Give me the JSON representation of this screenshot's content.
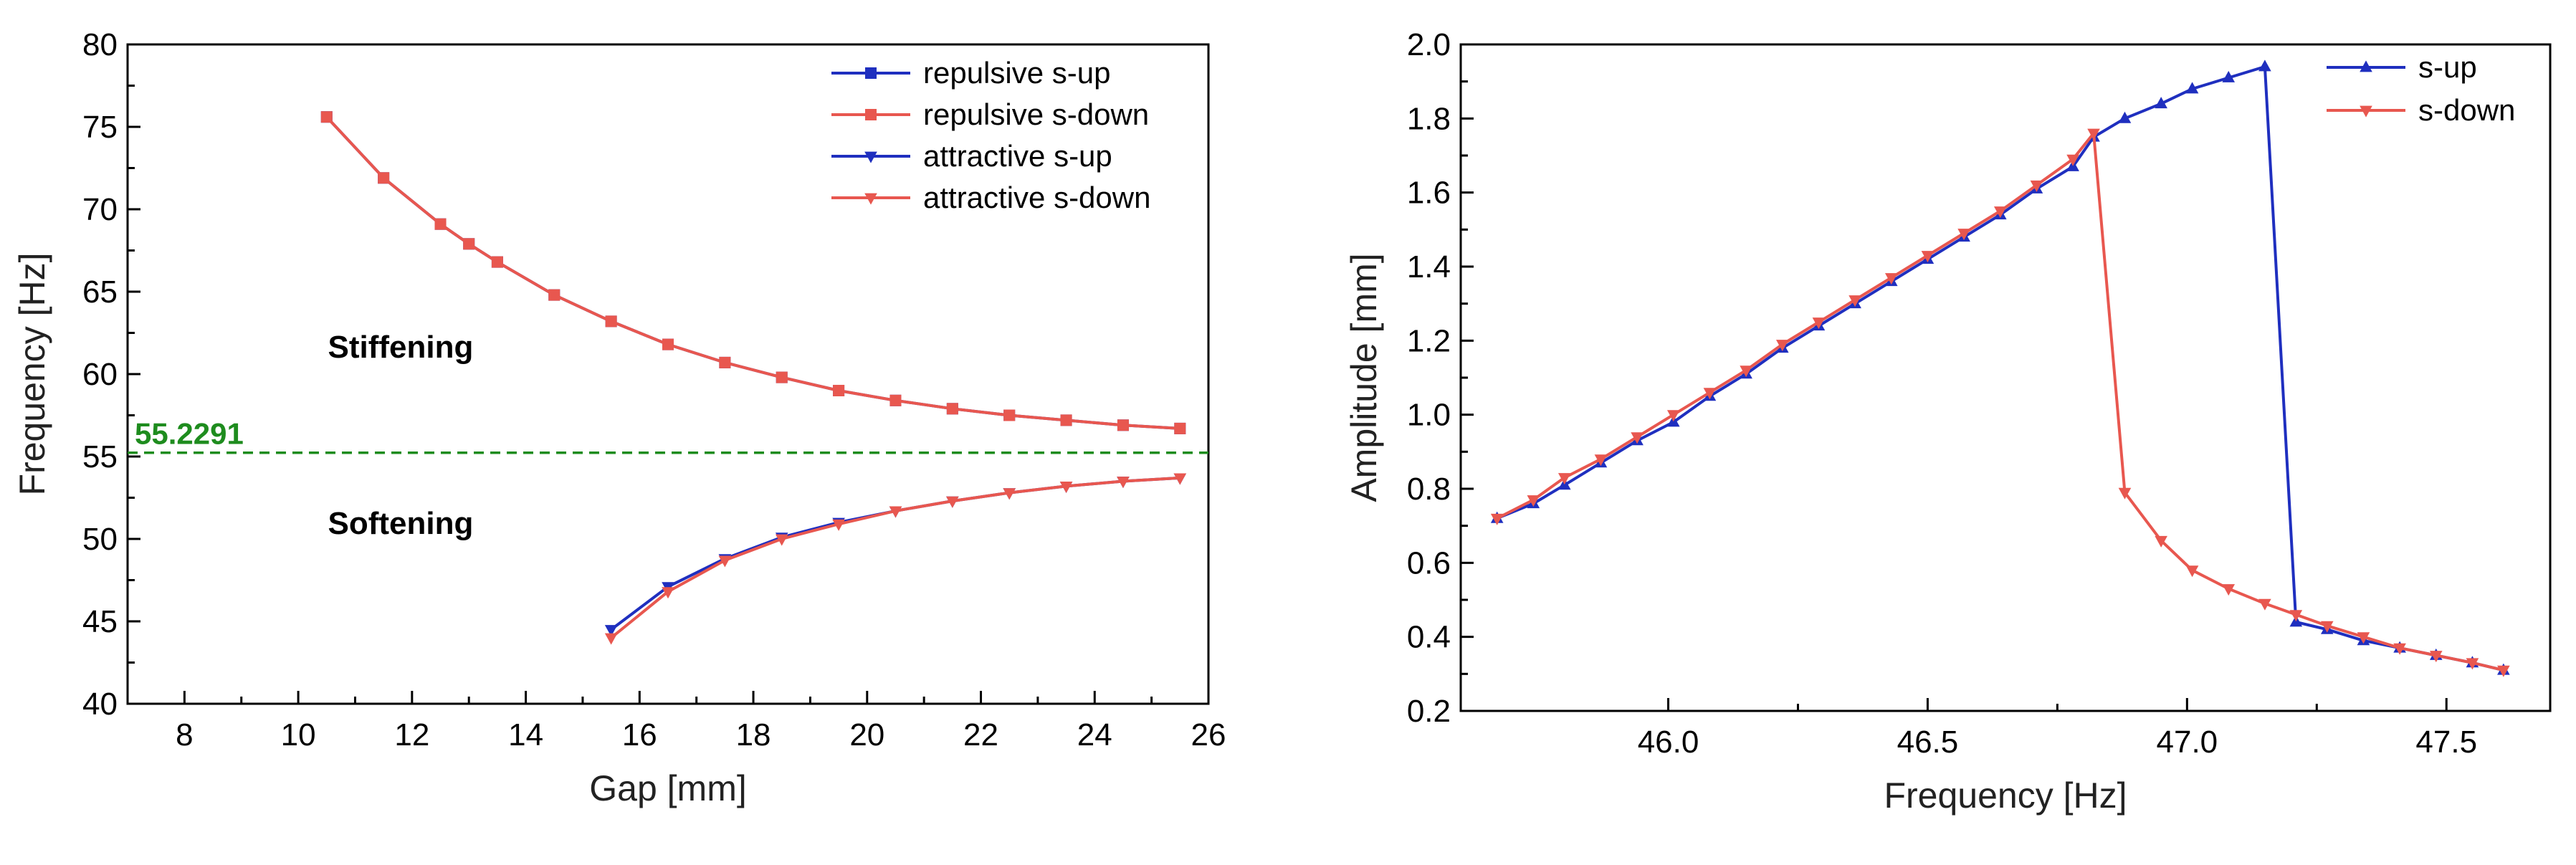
{
  "chart_data": [
    {
      "type": "line",
      "xlabel": "Gap [mm]",
      "ylabel": "Frequency [Hz]",
      "xlim": [
        7,
        26
      ],
      "ylim": [
        40,
        80
      ],
      "xticks": [
        8,
        10,
        12,
        14,
        16,
        18,
        20,
        22,
        24,
        26
      ],
      "yticks": [
        40,
        45,
        50,
        55,
        60,
        65,
        70,
        75,
        80
      ],
      "reference_line": {
        "value": 55.2291,
        "label": "55.2291",
        "color": "#1e8c1e"
      },
      "annotations": [
        {
          "text": "Stiffening",
          "x": 11.8,
          "y": 61
        },
        {
          "text": "Softening",
          "x": 11.8,
          "y": 50.3
        }
      ],
      "series": [
        {
          "name": "repulsive s-up",
          "color": "#1f2fbf",
          "marker": "square",
          "x": [
            10.5,
            11.5,
            12.5,
            13.0,
            13.5,
            14.5,
            15.5,
            16.5,
            17.5,
            18.5,
            19.5,
            20.5,
            21.5,
            22.5,
            23.5,
            24.5,
            25.5
          ],
          "y": [
            75.6,
            71.9,
            69.1,
            67.9,
            66.8,
            64.8,
            63.2,
            61.8,
            60.7,
            59.8,
            59.0,
            58.4,
            57.9,
            57.5,
            57.2,
            56.9,
            56.7
          ]
        },
        {
          "name": "repulsive s-down",
          "color": "#e8574f",
          "marker": "square",
          "x": [
            10.5,
            11.5,
            12.5,
            13.0,
            13.5,
            14.5,
            15.5,
            16.5,
            17.5,
            18.5,
            19.5,
            20.5,
            21.5,
            22.5,
            23.5,
            24.5,
            25.5
          ],
          "y": [
            75.6,
            71.9,
            69.1,
            67.9,
            66.8,
            64.8,
            63.2,
            61.8,
            60.7,
            59.8,
            59.0,
            58.4,
            57.9,
            57.5,
            57.2,
            56.9,
            56.7
          ]
        },
        {
          "name": "attractive s-up",
          "color": "#1f2fbf",
          "marker": "triangle-down",
          "x": [
            15.5,
            16.5,
            17.5,
            18.5,
            19.5,
            20.5,
            21.5,
            22.5,
            23.5,
            24.5,
            25.5
          ],
          "y": [
            44.5,
            47.1,
            48.8,
            50.1,
            51.0,
            51.7,
            52.3,
            52.8,
            53.2,
            53.5,
            53.7
          ]
        },
        {
          "name": "attractive s-down",
          "color": "#e8574f",
          "marker": "triangle-down",
          "x": [
            15.5,
            16.5,
            17.5,
            18.5,
            19.5,
            20.5,
            21.5,
            22.5,
            23.5,
            24.5,
            25.5
          ],
          "y": [
            44.0,
            46.8,
            48.7,
            50.0,
            50.9,
            51.7,
            52.3,
            52.8,
            53.2,
            53.5,
            53.7
          ]
        }
      ]
    },
    {
      "type": "line",
      "xlabel": "Frequency [Hz]",
      "ylabel": "Amplitude [mm]",
      "xlim": [
        45.6,
        47.7
      ],
      "ylim": [
        0.2,
        2.0
      ],
      "xticks": [
        46.0,
        46.5,
        47.0,
        47.5
      ],
      "xtick_labels": [
        "46.0",
        "46.5",
        "47.0",
        "47.5"
      ],
      "yticks": [
        0.2,
        0.4,
        0.6,
        0.8,
        1.0,
        1.2,
        1.4,
        1.6,
        1.8,
        2.0
      ],
      "ytick_labels": [
        "0.2",
        "0.4",
        "0.6",
        "0.8",
        "1.0",
        "1.2",
        "1.4",
        "1.6",
        "1.8",
        "2.0"
      ],
      "series": [
        {
          "name": "s-up",
          "color": "#1f2fbf",
          "marker": "triangle-up",
          "x": [
            45.67,
            45.74,
            45.8,
            45.87,
            45.94,
            46.01,
            46.08,
            46.15,
            46.22,
            46.29,
            46.36,
            46.43,
            46.5,
            46.57,
            46.64,
            46.71,
            46.78,
            46.82,
            46.88,
            46.95,
            47.01,
            47.08,
            47.15,
            47.21,
            47.27,
            47.34,
            47.41,
            47.48,
            47.55,
            47.61
          ],
          "y": [
            0.72,
            0.76,
            0.81,
            0.87,
            0.93,
            0.98,
            1.05,
            1.11,
            1.18,
            1.24,
            1.3,
            1.36,
            1.42,
            1.48,
            1.54,
            1.61,
            1.67,
            1.75,
            1.8,
            1.84,
            1.88,
            1.91,
            1.94,
            0.44,
            0.42,
            0.39,
            0.37,
            0.35,
            0.33,
            0.31
          ]
        },
        {
          "name": "s-down",
          "color": "#e8574f",
          "marker": "triangle-down",
          "x": [
            45.67,
            45.74,
            45.8,
            45.87,
            45.94,
            46.01,
            46.08,
            46.15,
            46.22,
            46.29,
            46.36,
            46.43,
            46.5,
            46.57,
            46.64,
            46.71,
            46.78,
            46.82,
            46.88,
            46.95,
            47.01,
            47.08,
            47.15,
            47.21,
            47.27,
            47.34,
            47.41,
            47.48,
            47.55,
            47.61
          ],
          "y": [
            0.72,
            0.77,
            0.83,
            0.88,
            0.94,
            1.0,
            1.06,
            1.12,
            1.19,
            1.25,
            1.31,
            1.37,
            1.43,
            1.49,
            1.55,
            1.62,
            1.69,
            1.76,
            0.79,
            0.66,
            0.58,
            0.53,
            0.49,
            0.46,
            0.43,
            0.4,
            0.37,
            0.35,
            0.33,
            0.31
          ]
        }
      ]
    }
  ]
}
